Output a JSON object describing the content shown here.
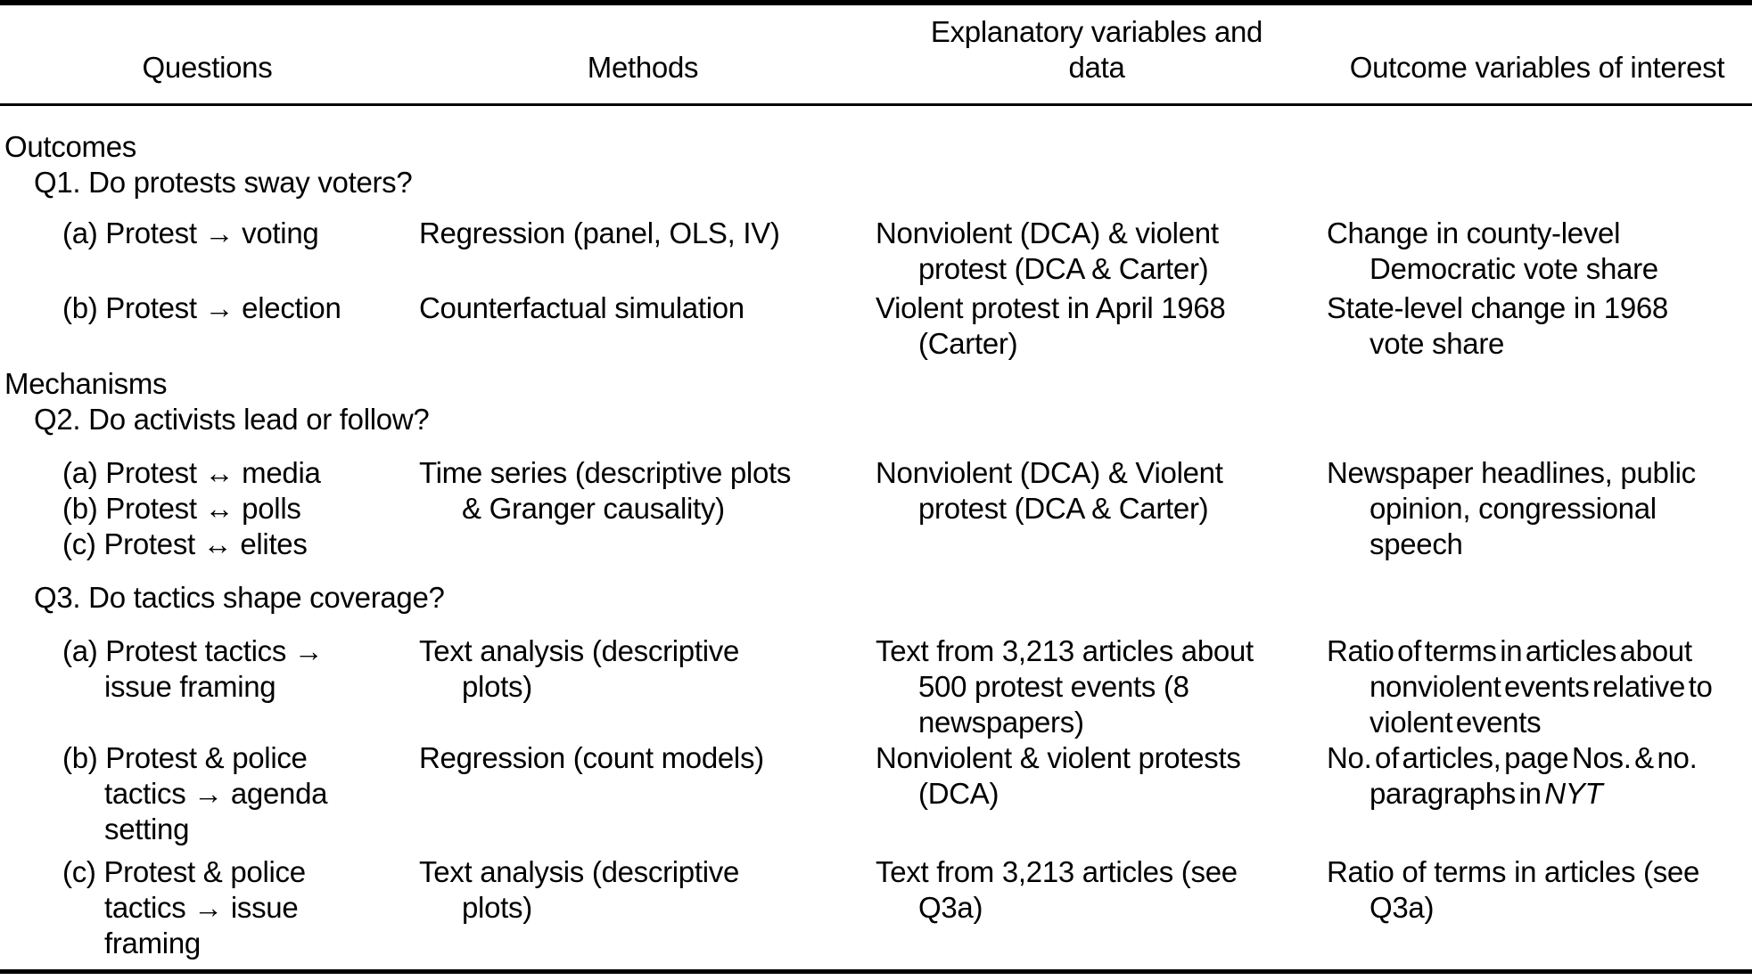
{
  "header": {
    "col1": "Questions",
    "col2": "Methods",
    "col3": "Explanatory variables and\ndata",
    "col4": "Outcome variables of interest"
  },
  "body": {
    "section_outcomes": "Outcomes",
    "q1_heading": "Q1. Do protests sway voters?",
    "q1a": {
      "question": "(a) Protest → voting",
      "method": "Regression (panel, OLS, IV)",
      "variables": "Nonviolent (DCA) & violent\nprotest (DCA & Carter)",
      "outcome": "Change in county-level\nDemocratic vote share"
    },
    "q1b": {
      "question": "(b) Protest → election",
      "method": "Counterfactual simulation",
      "variables": "Violent protest in April 1968\n(Carter)",
      "outcome": "State-level change in 1968\nvote share"
    },
    "section_mechanisms": "Mechanisms",
    "q2_heading": "Q2. Do activists lead or follow?",
    "q2abc": {
      "question": "(a) Protest ↔ media\n(b) Protest ↔ polls\n(c) Protest ↔ elites",
      "method": "Time series (descriptive plots\n& Granger causality)",
      "variables": "Nonviolent (DCA) & Violent\nprotest (DCA & Carter)",
      "outcome": "Newspaper headlines, public\nopinion, congressional\nspeech"
    },
    "q3_heading": "Q3. Do tactics shape coverage?",
    "q3a": {
      "question": "(a) Protest tactics →\nissue framing",
      "method": "Text analysis (descriptive\nplots)",
      "variables": "Text from 3,213 articles about\n500 protest events (8\nnewspapers)",
      "outcome": "Ratio of terms in articles about\nnonviolent events relative to\nviolent events"
    },
    "q3b": {
      "question": "(b) Protest & police\ntactics → agenda\nsetting",
      "method": "Regression (count models)",
      "variables": "Nonviolent & violent protests\n(DCA)",
      "outcome_pre": "No. of articles, page Nos. & no.\nparagraphs in ",
      "outcome_italic": "NYT"
    },
    "q3c": {
      "question": "(c) Protest & police\ntactics → issue\nframing",
      "method": "Text analysis (descriptive\nplots)",
      "variables": "Text from 3,213 articles (see\nQ3a)",
      "outcome": "Ratio of terms in articles (see\nQ3a)"
    }
  }
}
